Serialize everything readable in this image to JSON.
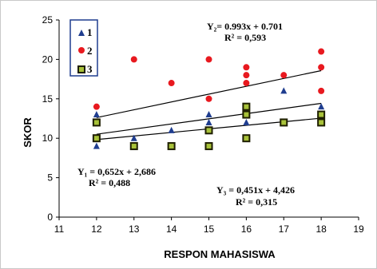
{
  "chart_data": {
    "type": "scatter",
    "xlabel": "RESPON MAHASISWA",
    "ylabel": "SKOR",
    "xlim": [
      11,
      19
    ],
    "ylim": [
      0,
      25
    ],
    "xticks": [
      "11",
      "12",
      "13",
      "14",
      "15",
      "16",
      "17",
      "18",
      "19"
    ],
    "yticks": [
      "0",
      "5",
      "10",
      "15",
      "20",
      "25"
    ],
    "grid": false,
    "legend_position": "top-left",
    "series": [
      {
        "name": "1",
        "marker": "triangle",
        "color": "#1f3d8f",
        "points": [
          [
            12,
            9
          ],
          [
            12,
            13
          ],
          [
            13,
            10
          ],
          [
            14,
            11
          ],
          [
            15,
            12
          ],
          [
            15,
            13
          ],
          [
            16,
            12
          ],
          [
            17,
            16
          ],
          [
            18,
            14
          ]
        ],
        "trendline": {
          "slope": 0.652,
          "intercept": 2.686,
          "label_line1": "Y₁ = 0,652x + 2,686",
          "label_line2": "R² = 0,488"
        }
      },
      {
        "name": "2",
        "marker": "circle",
        "color": "#e8191f",
        "points": [
          [
            12,
            14
          ],
          [
            13,
            20
          ],
          [
            14,
            17
          ],
          [
            15,
            15
          ],
          [
            15,
            20
          ],
          [
            16,
            17
          ],
          [
            16,
            18
          ],
          [
            16,
            19
          ],
          [
            17,
            18
          ],
          [
            18,
            16
          ],
          [
            18,
            19
          ],
          [
            18,
            21
          ]
        ],
        "trendline": {
          "slope": 0.993,
          "intercept": 0.701,
          "label_line1": "Y₂= 0.993x + 0.701",
          "label_line2": "R² = 0,593"
        }
      },
      {
        "name": "3",
        "marker": "square",
        "color": "#1e1e00",
        "fill": "#a8c23a",
        "points": [
          [
            12,
            10
          ],
          [
            12,
            12
          ],
          [
            13,
            9
          ],
          [
            14,
            9
          ],
          [
            15,
            9
          ],
          [
            15,
            11
          ],
          [
            16,
            10
          ],
          [
            16,
            13
          ],
          [
            16,
            14
          ],
          [
            17,
            12
          ],
          [
            18,
            12
          ],
          [
            18,
            13
          ]
        ],
        "trendline": {
          "slope": 0.451,
          "intercept": 4.426,
          "label_line1": "Y₃ = 0,451x + 4,426",
          "label_line2": "R² = 0,315"
        }
      }
    ]
  }
}
